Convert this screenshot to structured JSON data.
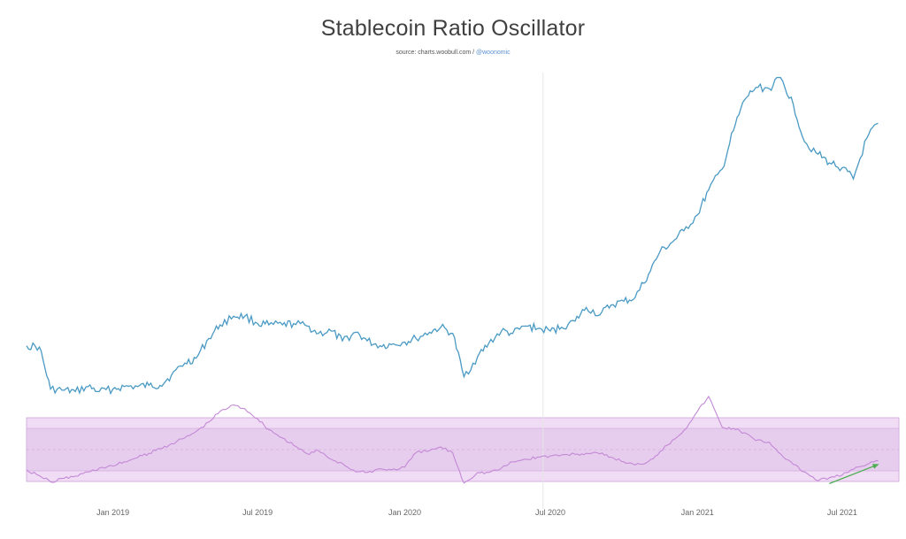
{
  "header": {
    "title": "Stablecoin Ratio Oscillator",
    "source_prefix": "source: charts.woobull.com /",
    "source_handle": "@woonomic"
  },
  "chart_data": {
    "type": "line",
    "title": "Stablecoin Ratio Oscillator",
    "xlabel": "",
    "ylabel": "",
    "grid": false,
    "x_tick_labels": [
      "Jan 2019",
      "Jul 2019",
      "Jan 2020",
      "Jul 2020",
      "Jan 2021",
      "Jul 2021"
    ],
    "x_tick_dates": [
      "2019-01-01",
      "2019-07-01",
      "2020-01-01",
      "2020-07-01",
      "2021-01-01",
      "2021-07-01"
    ],
    "colors": {
      "price_line": "#4a9ac4",
      "oscillator_line": "#c489d6",
      "band_outer": "#f0dcf4",
      "band_inner": "#e6cced",
      "band_border": "#cfa6da",
      "trend_arrow": "#4caf50",
      "divider": "#e6e6e6"
    },
    "series": [
      {
        "x": [
          "2018-09-15",
          "2018-10-01",
          "2018-10-15",
          "2018-11-01",
          "2018-11-15",
          "2018-12-01",
          "2018-12-15",
          "2019-01-01",
          "2019-01-15",
          "2019-02-01",
          "2019-02-15",
          "2019-03-01",
          "2019-03-15",
          "2019-04-01",
          "2019-04-15",
          "2019-05-01",
          "2019-05-15",
          "2019-06-01",
          "2019-06-15",
          "2019-07-01",
          "2019-07-15",
          "2019-08-01",
          "2019-08-15",
          "2019-09-01",
          "2019-09-15",
          "2019-10-01",
          "2019-10-15",
          "2019-11-01",
          "2019-11-15",
          "2019-12-01",
          "2019-12-15",
          "2020-01-01",
          "2020-01-15",
          "2020-02-01",
          "2020-02-15",
          "2020-03-01",
          "2020-03-15",
          "2020-04-01",
          "2020-04-15",
          "2020-05-01",
          "2020-05-15",
          "2020-06-01",
          "2020-06-15",
          "2020-07-01",
          "2020-07-15",
          "2020-08-01",
          "2020-08-15",
          "2020-09-01",
          "2020-09-15",
          "2020-10-01",
          "2020-10-15",
          "2020-11-01",
          "2020-11-15",
          "2020-12-01",
          "2020-12-15",
          "2021-01-01",
          "2021-01-15",
          "2021-02-01",
          "2021-02-15",
          "2021-03-01",
          "2021-03-15",
          "2021-04-01",
          "2021-04-15",
          "2021-05-01",
          "2021-05-15",
          "2021-06-01",
          "2021-06-15",
          "2021-07-01",
          "2021-07-15",
          "2021-08-01",
          "2021-08-15"
        ],
        "values": [
          0.64,
          0.63,
          0.29,
          0.28,
          0.27,
          0.31,
          0.27,
          0.29,
          0.31,
          0.31,
          0.32,
          0.32,
          0.4,
          0.5,
          0.54,
          0.7,
          0.81,
          0.88,
          0.88,
          0.82,
          0.81,
          0.81,
          0.82,
          0.8,
          0.74,
          0.76,
          0.68,
          0.75,
          0.68,
          0.64,
          0.65,
          0.67,
          0.7,
          0.75,
          0.79,
          0.74,
          0.39,
          0.55,
          0.66,
          0.76,
          0.74,
          0.8,
          0.78,
          0.76,
          0.79,
          0.84,
          0.95,
          0.89,
          0.97,
          1.0,
          1.03,
          1.22,
          1.4,
          1.48,
          1.57,
          1.7,
          1.9,
          2.07,
          2.38,
          2.63,
          2.73,
          2.72,
          2.81,
          2.59,
          2.29,
          2.19,
          2.12,
          2.08,
          1.99,
          2.32,
          2.44
        ]
      },
      {
        "x": [
          "2018-09-15",
          "2018-10-01",
          "2018-10-15",
          "2018-11-01",
          "2018-11-15",
          "2018-12-01",
          "2018-12-15",
          "2019-01-01",
          "2019-01-15",
          "2019-02-01",
          "2019-02-15",
          "2019-03-01",
          "2019-03-15",
          "2019-04-01",
          "2019-04-15",
          "2019-05-01",
          "2019-05-15",
          "2019-06-01",
          "2019-06-15",
          "2019-07-01",
          "2019-07-15",
          "2019-08-01",
          "2019-08-15",
          "2019-09-01",
          "2019-09-15",
          "2019-10-01",
          "2019-10-15",
          "2019-11-01",
          "2019-11-15",
          "2019-12-01",
          "2019-12-15",
          "2020-01-01",
          "2020-01-15",
          "2020-02-01",
          "2020-02-15",
          "2020-03-01",
          "2020-03-15",
          "2020-04-01",
          "2020-04-15",
          "2020-05-01",
          "2020-05-15",
          "2020-06-01",
          "2020-06-15",
          "2020-07-01",
          "2020-07-15",
          "2020-08-01",
          "2020-08-15",
          "2020-09-01",
          "2020-09-15",
          "2020-10-01",
          "2020-10-15",
          "2020-11-01",
          "2020-11-15",
          "2020-12-01",
          "2020-12-15",
          "2021-01-01",
          "2021-01-15",
          "2021-02-01",
          "2021-02-15",
          "2021-03-01",
          "2021-03-15",
          "2021-04-01",
          "2021-04-15",
          "2021-05-01",
          "2021-05-15",
          "2021-06-01",
          "2021-06-15",
          "2021-07-01",
          "2021-07-15",
          "2021-08-01",
          "2021-08-15"
        ],
        "values": [
          -1.9,
          -2.45,
          -3.05,
          -2.7,
          -2.5,
          -2.1,
          -1.75,
          -1.55,
          -1.15,
          -0.75,
          -0.35,
          0.1,
          0.55,
          1.1,
          1.7,
          2.6,
          3.6,
          4.2,
          3.85,
          2.9,
          1.9,
          1.1,
          0.4,
          -0.4,
          -0.1,
          -0.9,
          -1.3,
          -2.1,
          -2.15,
          -1.8,
          -1.9,
          -1.65,
          -0.3,
          -0.1,
          0.25,
          -0.3,
          -3.15,
          -2.15,
          -2.15,
          -1.75,
          -1.15,
          -0.9,
          -0.7,
          -0.6,
          -0.5,
          -0.45,
          -0.35,
          -0.4,
          -0.7,
          -1.15,
          -1.45,
          -1.1,
          -0.2,
          0.9,
          1.8,
          3.6,
          5.0,
          2.1,
          2.0,
          1.6,
          0.85,
          0.7,
          -0.4,
          -1.4,
          -2.1,
          -2.95,
          -2.65,
          -2.4,
          -1.85,
          -1.4,
          -1.05
        ]
      }
    ],
    "oscillator_bands": {
      "extreme": [
        -3,
        3
      ],
      "inner": [
        -2,
        2
      ],
      "mid": 0
    },
    "annotations": [
      {
        "type": "arrow",
        "series": 1,
        "from_x": "2021-06-15",
        "from_y": -3.2,
        "to_x": "2021-08-15",
        "to_y": -1.4
      }
    ]
  }
}
